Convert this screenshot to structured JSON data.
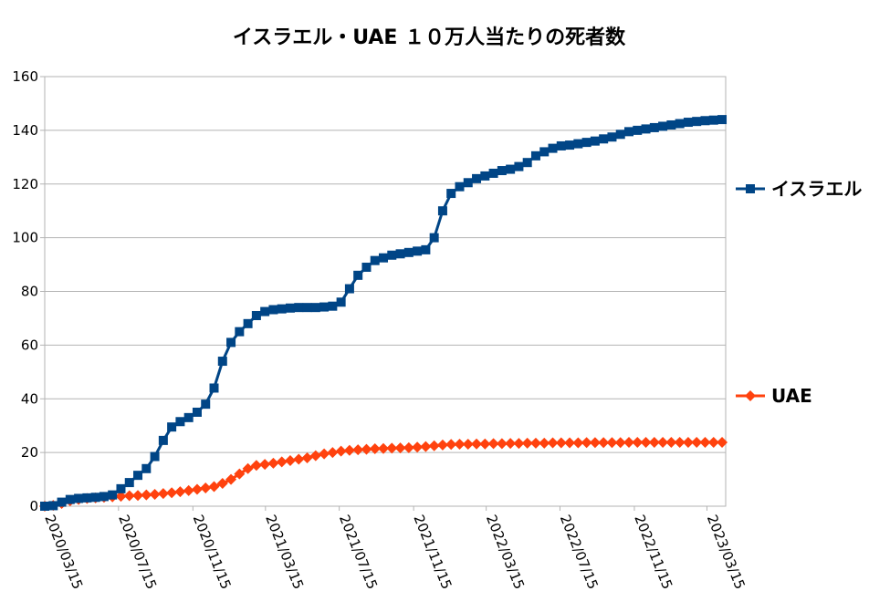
{
  "chart_data": {
    "type": "line",
    "title": "イスラエル・UAE １０万人当たりの死者数",
    "xlabel": "",
    "ylabel": "",
    "ylim": [
      0,
      160
    ],
    "yticks": [
      0,
      20,
      40,
      60,
      80,
      100,
      120,
      140,
      160
    ],
    "x_range": [
      "2020/03/15",
      "2023/04/15"
    ],
    "x_tick_labels": [
      "2020/03/15",
      "2020/07/15",
      "2020/11/15",
      "2021/03/15",
      "2021/07/15",
      "2021/11/15",
      "2022/03/15",
      "2022/07/15",
      "2022/11/15",
      "2023/03/15"
    ],
    "grid": "horizontal",
    "legend_position": "right",
    "series": [
      {
        "name": "イスラエル",
        "color": "#004586",
        "marker": "square",
        "x": [
          "2020/03/15",
          "2020/03/29",
          "2020/04/12",
          "2020/04/26",
          "2020/05/10",
          "2020/05/24",
          "2020/06/07",
          "2020/06/21",
          "2020/07/05",
          "2020/07/19",
          "2020/08/02",
          "2020/08/16",
          "2020/08/30",
          "2020/09/13",
          "2020/09/27",
          "2020/10/11",
          "2020/10/25",
          "2020/11/08",
          "2020/11/22",
          "2020/12/06",
          "2020/12/20",
          "2021/01/03",
          "2021/01/17",
          "2021/01/31",
          "2021/02/14",
          "2021/02/28",
          "2021/03/14",
          "2021/03/28",
          "2021/04/11",
          "2021/04/25",
          "2021/05/09",
          "2021/05/23",
          "2021/06/06",
          "2021/06/20",
          "2021/07/04",
          "2021/07/18",
          "2021/08/01",
          "2021/08/15",
          "2021/08/29",
          "2021/09/12",
          "2021/09/26",
          "2021/10/10",
          "2021/10/24",
          "2021/11/07",
          "2021/11/21",
          "2021/12/05",
          "2021/12/19",
          "2022/01/02",
          "2022/01/16",
          "2022/01/30",
          "2022/02/13",
          "2022/02/27",
          "2022/03/13",
          "2022/03/27",
          "2022/04/10",
          "2022/04/24",
          "2022/05/08",
          "2022/05/22",
          "2022/06/05",
          "2022/06/19",
          "2022/07/03",
          "2022/07/17",
          "2022/07/31",
          "2022/08/14",
          "2022/08/28",
          "2022/09/11",
          "2022/09/25",
          "2022/10/09",
          "2022/10/23",
          "2022/11/06",
          "2022/11/20",
          "2022/12/04",
          "2022/12/18",
          "2023/01/01",
          "2023/01/15",
          "2023/01/29",
          "2023/02/12",
          "2023/02/26",
          "2023/03/12",
          "2023/03/26",
          "2023/04/09"
        ],
        "values": [
          0,
          0.2,
          1.5,
          2.5,
          2.9,
          3.1,
          3.3,
          3.6,
          4.2,
          6.5,
          8.8,
          11.5,
          14,
          18.5,
          24.5,
          29.5,
          31.5,
          33,
          35,
          38,
          44,
          54,
          61,
          65,
          68,
          71,
          72.5,
          73.2,
          73.5,
          73.8,
          74,
          74,
          74,
          74.2,
          74.5,
          76,
          81,
          86,
          89,
          91.5,
          92.5,
          93.5,
          94,
          94.5,
          95,
          95.5,
          100,
          110,
          116.5,
          119,
          120.5,
          122,
          123,
          124,
          125,
          125.5,
          126.5,
          128,
          130.5,
          132,
          133.3,
          134.2,
          134.5,
          135,
          135.5,
          136,
          136.8,
          137.5,
          138.5,
          139.5,
          140,
          140.5,
          141,
          141.5,
          142,
          142.5,
          143,
          143.3,
          143.6,
          143.8,
          144
        ]
      },
      {
        "name": "UAE",
        "color": "#ff420e",
        "marker": "diamond",
        "x": [
          "2020/03/15",
          "2020/03/29",
          "2020/04/12",
          "2020/04/26",
          "2020/05/10",
          "2020/05/24",
          "2020/06/07",
          "2020/06/21",
          "2020/07/05",
          "2020/07/19",
          "2020/08/02",
          "2020/08/16",
          "2020/08/30",
          "2020/09/13",
          "2020/09/27",
          "2020/10/11",
          "2020/10/25",
          "2020/11/08",
          "2020/11/22",
          "2020/12/06",
          "2020/12/20",
          "2021/01/03",
          "2021/01/17",
          "2021/01/31",
          "2021/02/14",
          "2021/02/28",
          "2021/03/14",
          "2021/03/28",
          "2021/04/11",
          "2021/04/25",
          "2021/05/09",
          "2021/05/23",
          "2021/06/06",
          "2021/06/20",
          "2021/07/04",
          "2021/07/18",
          "2021/08/01",
          "2021/08/15",
          "2021/08/29",
          "2021/09/12",
          "2021/09/26",
          "2021/10/10",
          "2021/10/24",
          "2021/11/07",
          "2021/11/21",
          "2021/12/05",
          "2021/12/19",
          "2022/01/02",
          "2022/01/16",
          "2022/01/30",
          "2022/02/13",
          "2022/02/27",
          "2022/03/13",
          "2022/03/27",
          "2022/04/10",
          "2022/04/24",
          "2022/05/08",
          "2022/05/22",
          "2022/06/05",
          "2022/06/19",
          "2022/07/03",
          "2022/07/17",
          "2022/07/31",
          "2022/08/14",
          "2022/08/28",
          "2022/09/11",
          "2022/09/25",
          "2022/10/09",
          "2022/10/23",
          "2022/11/06",
          "2022/11/20",
          "2022/12/04",
          "2022/12/18",
          "2023/01/01",
          "2023/01/15",
          "2023/01/29",
          "2023/02/12",
          "2023/02/26",
          "2023/03/12",
          "2023/03/26",
          "2023/04/09"
        ],
        "values": [
          0,
          0.3,
          1,
          2,
          2.5,
          2.9,
          3.1,
          3.3,
          3.5,
          3.7,
          3.9,
          4,
          4.2,
          4.4,
          4.7,
          5,
          5.4,
          5.8,
          6.3,
          6.8,
          7.3,
          8.5,
          10,
          12,
          14,
          15.2,
          15.6,
          16,
          16.5,
          17,
          17.5,
          18,
          18.8,
          19.5,
          20,
          20.5,
          20.8,
          21,
          21.2,
          21.4,
          21.5,
          21.6,
          21.7,
          21.8,
          22,
          22.2,
          22.5,
          22.8,
          23,
          23.1,
          23.1,
          23.2,
          23.2,
          23.3,
          23.3,
          23.4,
          23.4,
          23.5,
          23.5,
          23.5,
          23.6,
          23.6,
          23.6,
          23.6,
          23.7,
          23.7,
          23.7,
          23.7,
          23.7,
          23.8,
          23.8,
          23.8,
          23.8,
          23.8,
          23.8,
          23.8,
          23.8,
          23.8,
          23.8,
          23.8,
          23.8
        ]
      }
    ]
  }
}
